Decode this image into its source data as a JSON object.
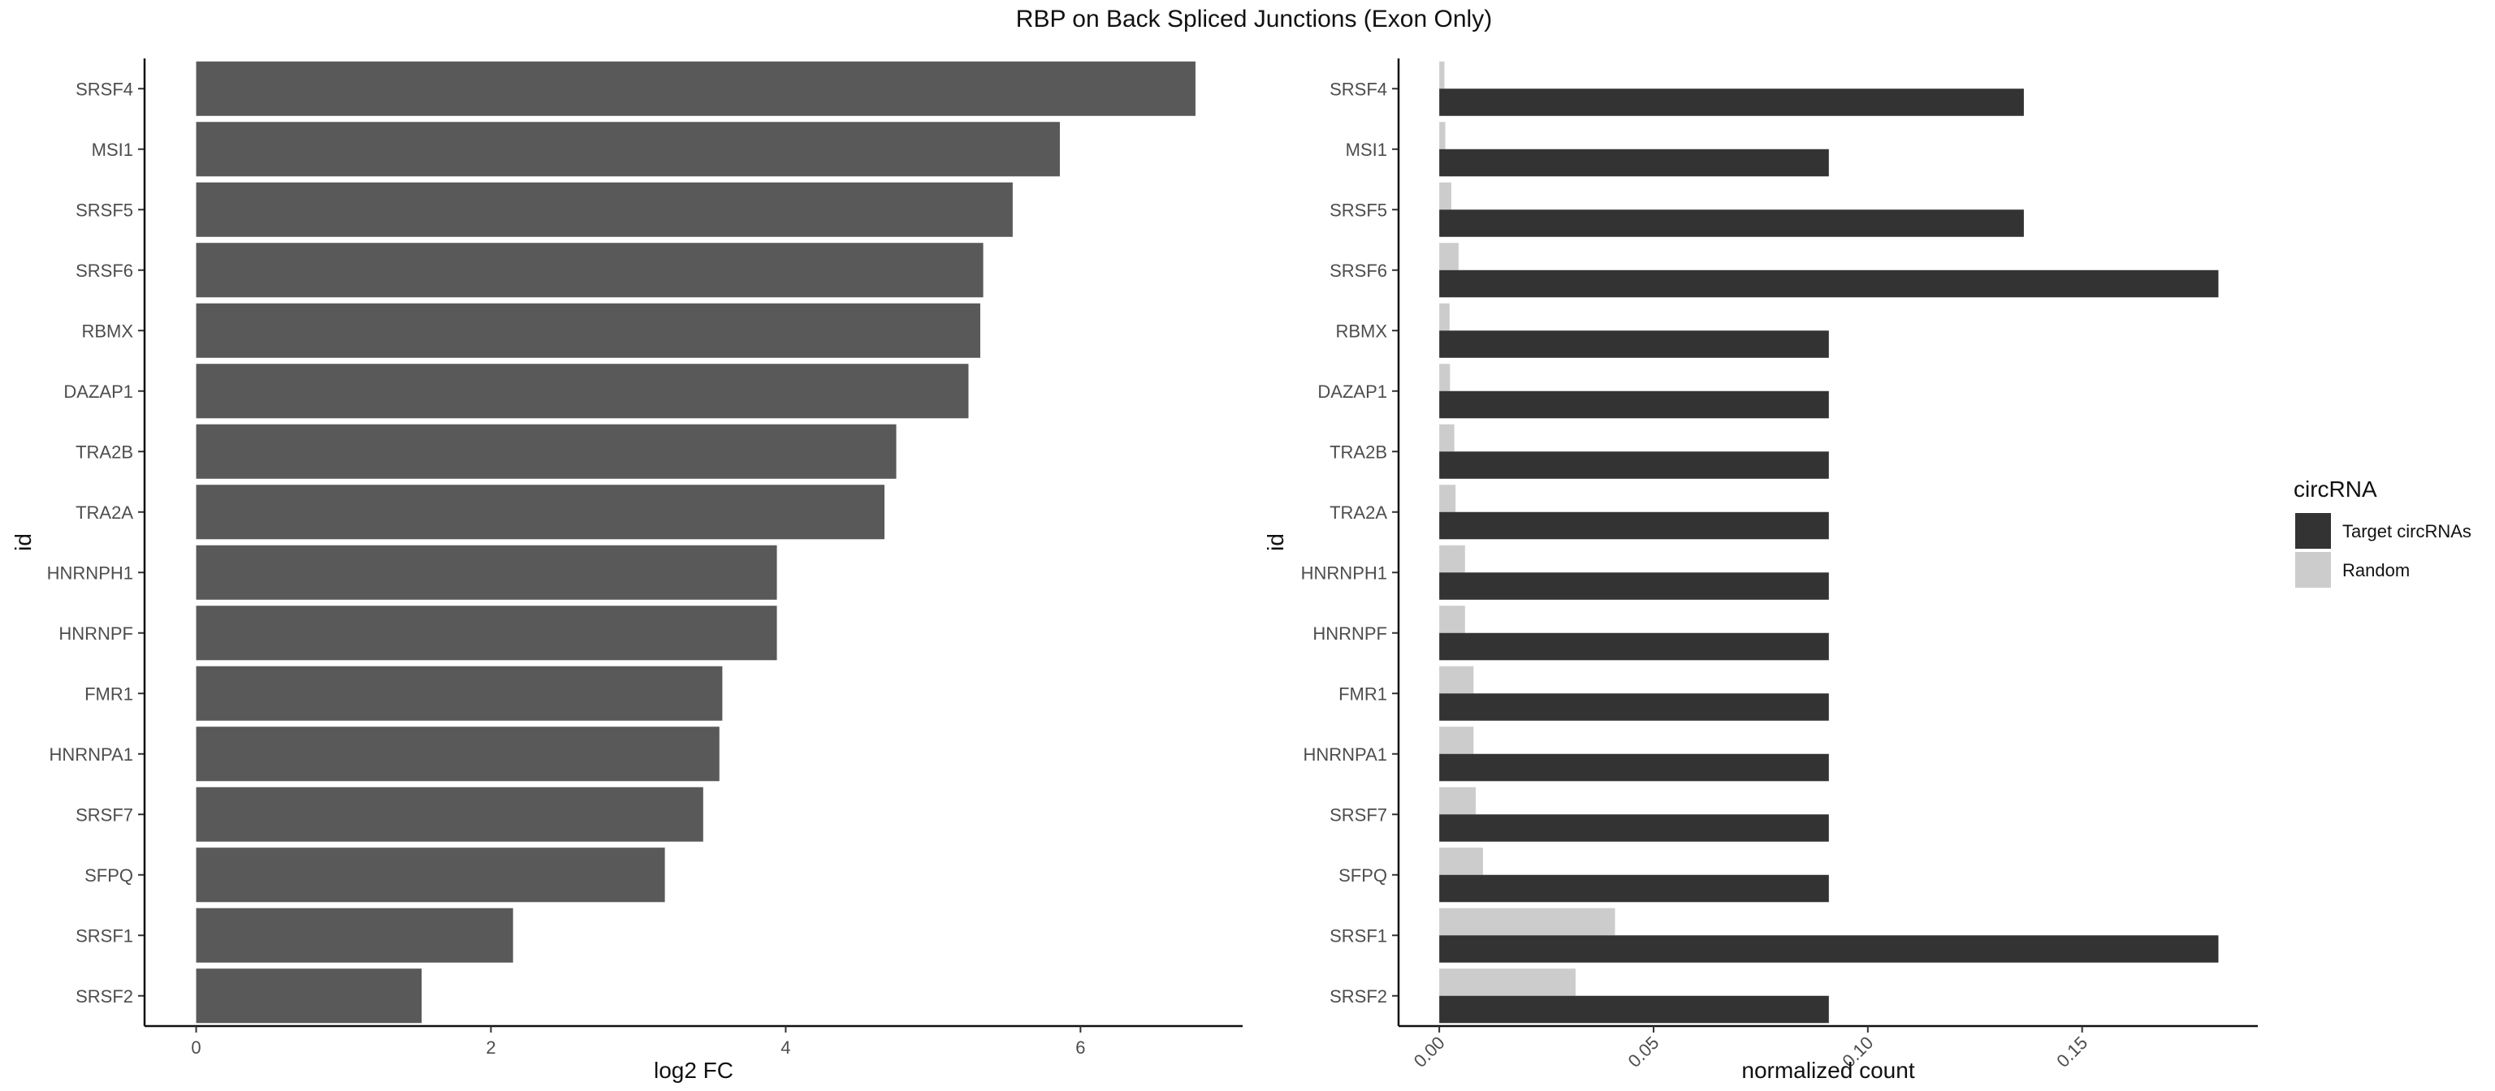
{
  "figure": {
    "title": "RBP on Back Spliced Junctions (Exon Only)"
  },
  "chart_data": [
    {
      "type": "bar",
      "orientation": "horizontal",
      "categories": [
        "SRSF4",
        "MSI1",
        "SRSF5",
        "SRSF6",
        "RBMX",
        "DAZAP1",
        "TRA2B",
        "TRA2A",
        "HNRNPH1",
        "HNRNPF",
        "FMR1",
        "HNRNPA1",
        "SRSF7",
        "SFPQ",
        "SRSF1",
        "SRSF2"
      ],
      "values": [
        6.78,
        5.86,
        5.54,
        5.34,
        5.32,
        5.24,
        4.75,
        4.67,
        3.94,
        3.94,
        3.57,
        3.55,
        3.44,
        3.18,
        2.15,
        1.53
      ],
      "xlabel": "log2 FC",
      "ylabel": "id",
      "xlim": [
        -0.35,
        7.1
      ],
      "xticks": [
        0,
        2,
        4,
        6
      ],
      "color": "#595959",
      "grid": false
    },
    {
      "type": "bar",
      "orientation": "horizontal",
      "categories": [
        "SRSF4",
        "MSI1",
        "SRSF5",
        "SRSF6",
        "RBMX",
        "DAZAP1",
        "TRA2B",
        "TRA2A",
        "HNRNPH1",
        "HNRNPF",
        "FMR1",
        "HNRNPA1",
        "SRSF7",
        "SFPQ",
        "SRSF1",
        "SRSF2"
      ],
      "series": [
        {
          "name": "Target circRNAs",
          "color": "#333333",
          "values": [
            0.1364,
            0.0909,
            0.1364,
            0.1818,
            0.0909,
            0.0909,
            0.0909,
            0.0909,
            0.0909,
            0.0909,
            0.0909,
            0.0909,
            0.0909,
            0.0909,
            0.1818,
            0.0909
          ]
        },
        {
          "name": "Random",
          "color": "#cccccc",
          "values": [
            0.0012,
            0.0014,
            0.0028,
            0.0045,
            0.0024,
            0.0025,
            0.0035,
            0.0038,
            0.006,
            0.006,
            0.008,
            0.008,
            0.0085,
            0.0102,
            0.041,
            0.0318
          ]
        }
      ],
      "xlabel": "normalized count",
      "ylabel": "id",
      "xlim": [
        -0.0095,
        0.191
      ],
      "xticks": [
        0.0,
        0.05,
        0.1,
        0.15
      ],
      "xtick_labels": [
        "0.00",
        "0.05",
        "0.10",
        "0.15"
      ],
      "xtick_rotation": 45,
      "grid": false,
      "legend": {
        "title": "circRNA",
        "placement": "right"
      }
    }
  ]
}
